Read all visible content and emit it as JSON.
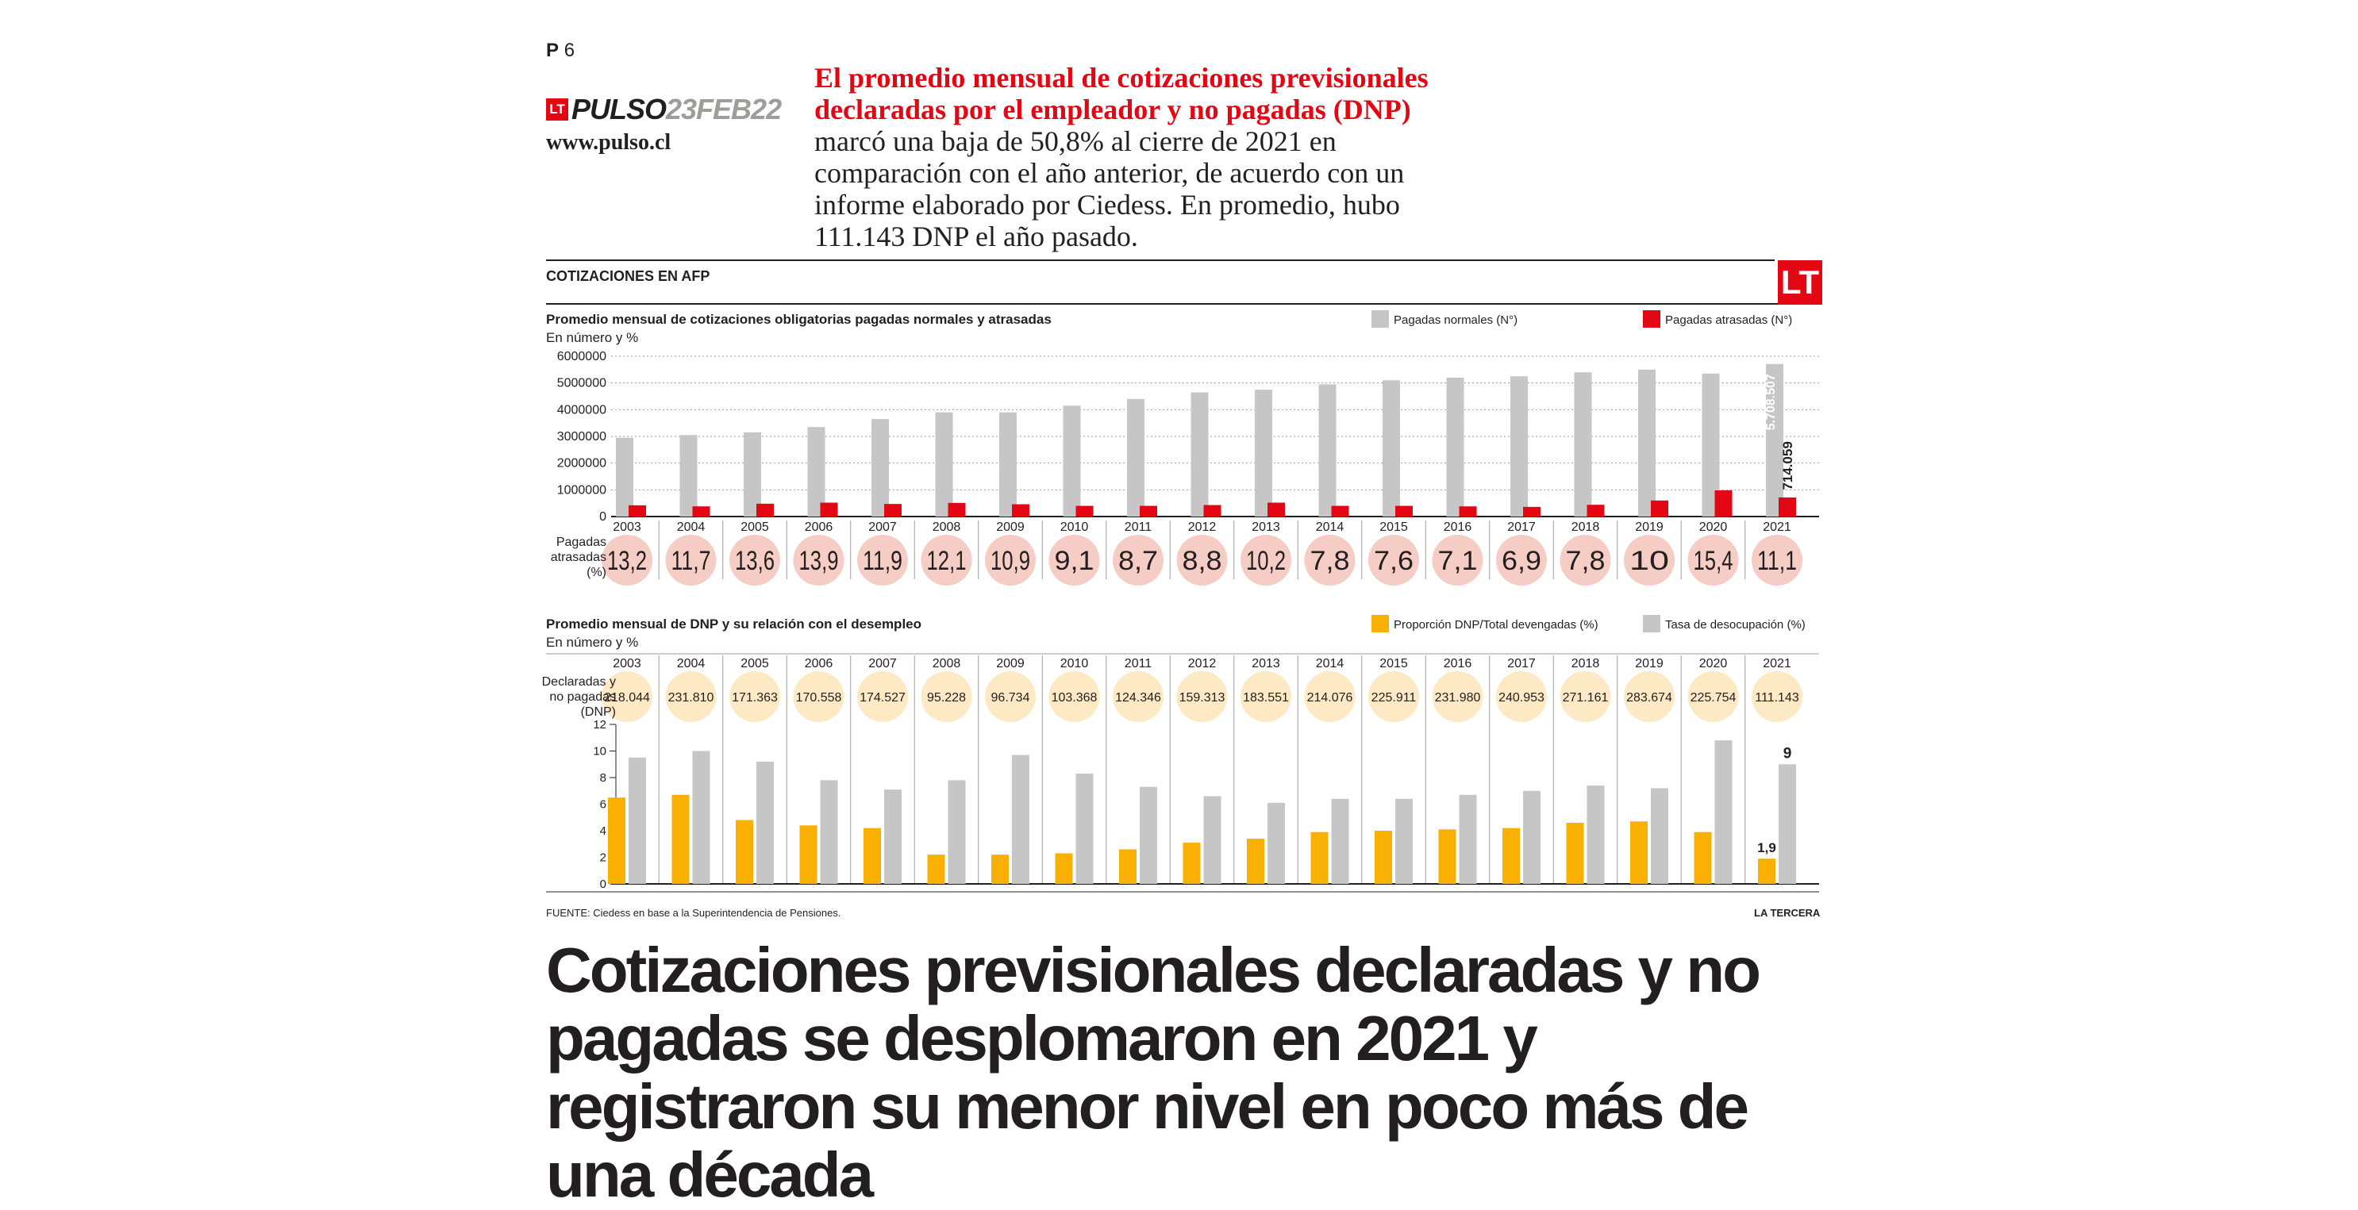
{
  "page": {
    "label": "P",
    "number": "6"
  },
  "masthead": {
    "logo": "LT",
    "brand": "PULSO",
    "date": "23FEB22",
    "url": "www.pulso.cl"
  },
  "lead": {
    "highlight": "El promedio mensual de cotizaciones previsionales declaradas por el empleador y no pagadas (DNP)",
    "rest": " marcó una baja de 50,8% al cierre de 2021 en comparación con el año anterior, de acuerdo con un informe elaborado por Ciedess. En promedio, hubo 111.143 DNP el año pasado."
  },
  "section": {
    "label": "COTIZACIONES EN AFP",
    "logo": "LT"
  },
  "footer": {
    "source": "FUENTE: Ciedess en base a la Superintendencia de Pensiones.",
    "credit": "LA TERCERA"
  },
  "headline": "Cotizaciones previsionales declaradas y no pagadas se desplomaron en 2021 y registraron su menor nivel en poco más de una década",
  "colors": {
    "red": "#e30613",
    "gray": "#c6c6c6",
    "yellow": "#f9b000",
    "pink_circle": "#f6cdc4",
    "yellow_circle": "#fde9c4"
  },
  "chart_data": [
    {
      "type": "bar",
      "title": "Promedio mensual de cotizaciones obligatorias pagadas normales y atrasadas",
      "subtitle": "En número y %",
      "categories": [
        "2003",
        "2004",
        "2005",
        "2006",
        "2007",
        "2008",
        "2009",
        "2010",
        "2011",
        "2012",
        "2013",
        "2014",
        "2015",
        "2016",
        "2017",
        "2018",
        "2019",
        "2020",
        "2021"
      ],
      "series": [
        {
          "name": "Pagadas normales (N°)",
          "color": "#c6c6c6",
          "values": [
            2950000,
            3050000,
            3150000,
            3350000,
            3650000,
            3900000,
            3900000,
            4150000,
            4400000,
            4650000,
            4750000,
            4950000,
            5100000,
            5200000,
            5250000,
            5400000,
            5500000,
            5350000,
            5708507
          ]
        },
        {
          "name": "Pagadas atrasadas (N°)",
          "color": "#e30613",
          "values": [
            420000,
            380000,
            480000,
            520000,
            470000,
            510000,
            460000,
            400000,
            400000,
            430000,
            520000,
            400000,
            400000,
            380000,
            360000,
            440000,
            600000,
            980000,
            714059
          ]
        }
      ],
      "yticks": [
        "6000000",
        "5000000",
        "4000000",
        "3000000",
        "2000000",
        "1000000",
        "0"
      ],
      "ylim": [
        0,
        6000000
      ],
      "annotations": [
        "5.708.507",
        "714.059"
      ],
      "row_label": [
        "Pagadas",
        "atrasadas",
        "(%)"
      ],
      "row_values": [
        "13,2",
        "11,7",
        "13,6",
        "13,9",
        "11,9",
        "12,1",
        "10,9",
        "9,1",
        "8,7",
        "8,8",
        "10,2",
        "7,8",
        "7,6",
        "7,1",
        "6,9",
        "7,8",
        "10",
        "15,4",
        "11,1"
      ]
    },
    {
      "type": "bar",
      "title": "Promedio mensual de DNP y su relación con el desempleo",
      "subtitle": "En número y %",
      "categories": [
        "2003",
        "2004",
        "2005",
        "2006",
        "2007",
        "2008",
        "2009",
        "2010",
        "2011",
        "2012",
        "2013",
        "2014",
        "2015",
        "2016",
        "2017",
        "2018",
        "2019",
        "2020",
        "2021"
      ],
      "series": [
        {
          "name": "Proporción DNP/Total devengadas (%)",
          "color": "#f9b000",
          "values": [
            6.5,
            6.7,
            4.8,
            4.4,
            4.2,
            2.2,
            2.2,
            2.3,
            2.6,
            3.1,
            3.4,
            3.9,
            4.0,
            4.1,
            4.2,
            4.6,
            4.7,
            3.9,
            1.9
          ]
        },
        {
          "name": "Tasa de desocupación (%)",
          "color": "#c6c6c6",
          "values": [
            9.5,
            10.0,
            9.2,
            7.8,
            7.1,
            7.8,
            9.7,
            8.3,
            7.3,
            6.6,
            6.1,
            6.4,
            6.4,
            6.7,
            7.0,
            7.4,
            7.2,
            10.8,
            9.0
          ]
        }
      ],
      "yticks": [
        "12",
        "10",
        "8",
        "6",
        "4",
        "2",
        "0"
      ],
      "ylim": [
        0,
        12
      ],
      "annotations": [
        "9",
        "1,9"
      ],
      "row_label": [
        "Declaradas y",
        "no pagadas",
        "(DNP)"
      ],
      "row_values": [
        "218.044",
        "231.810",
        "171.363",
        "170.558",
        "174.527",
        "95.228",
        "96.734",
        "103.368",
        "124.346",
        "159.313",
        "183.551",
        "214.076",
        "225.911",
        "231.980",
        "240.953",
        "271.161",
        "283.674",
        "225.754",
        "111.143"
      ]
    }
  ]
}
